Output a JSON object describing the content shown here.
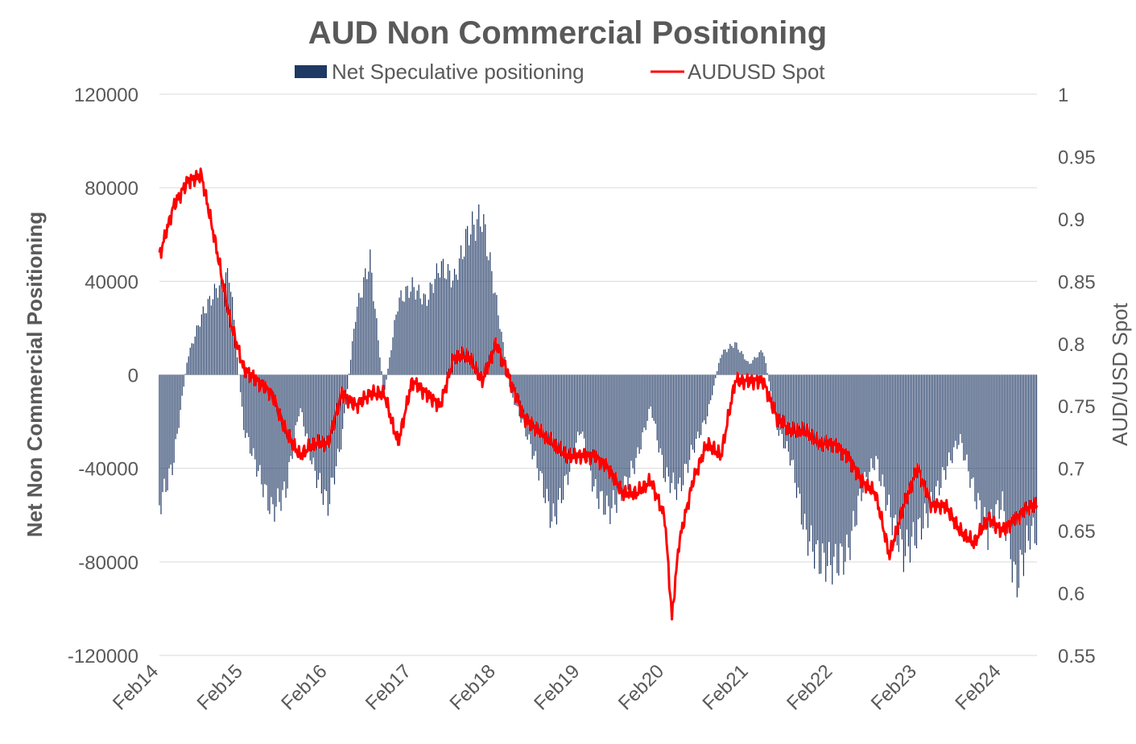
{
  "chart_data": {
    "type": "bar+line",
    "title": "AUD Non Commercial Positioning",
    "ylabel": "Net Non Commercial Positioning",
    "y2label": "AUD/USD Spot",
    "legend": {
      "position": "top",
      "entries": [
        "Net Speculative positioning",
        "AUDUSD Spot"
      ]
    },
    "grid": true,
    "ylim": [
      -120000,
      120000
    ],
    "y2lim": [
      0.55,
      1.0
    ],
    "y_ticks": [
      "120000",
      "80000",
      "40000",
      "0",
      "-40000",
      "-80000",
      "-120000"
    ],
    "y2_ticks": [
      "1",
      "0.95",
      "0.9",
      "0.85",
      "0.8",
      "0.75",
      "0.7",
      "0.65",
      "0.6",
      "0.55"
    ],
    "x_ticks": [
      "Feb14",
      "Feb15",
      "Feb16",
      "Feb17",
      "Feb18",
      "Feb19",
      "Feb20",
      "Feb21",
      "Feb22",
      "Feb23",
      "Feb24"
    ],
    "x_range": [
      "2014-02",
      "2024-07"
    ],
    "series": [
      {
        "name": "Net Speculative positioning",
        "type": "bar",
        "axis": "left",
        "color": "#1f3864",
        "x": [
          "2014-02",
          "2014-04",
          "2014-06",
          "2014-08",
          "2014-10",
          "2014-12",
          "2015-02",
          "2015-04",
          "2015-06",
          "2015-08",
          "2015-10",
          "2015-12",
          "2016-02",
          "2016-04",
          "2016-06",
          "2016-08",
          "2016-10",
          "2016-12",
          "2017-02",
          "2017-04",
          "2017-06",
          "2017-08",
          "2017-10",
          "2017-12",
          "2018-02",
          "2018-04",
          "2018-06",
          "2018-08",
          "2018-10",
          "2018-12",
          "2019-02",
          "2019-04",
          "2019-06",
          "2019-08",
          "2019-10",
          "2019-12",
          "2020-02",
          "2020-04",
          "2020-06",
          "2020-08",
          "2020-10",
          "2020-12",
          "2021-02",
          "2021-04",
          "2021-06",
          "2021-08",
          "2021-10",
          "2021-12",
          "2022-02",
          "2022-04",
          "2022-06",
          "2022-08",
          "2022-10",
          "2022-12",
          "2023-02",
          "2023-04",
          "2023-06",
          "2023-08",
          "2023-10",
          "2023-12",
          "2024-02",
          "2024-04",
          "2024-06"
        ],
        "values": [
          -62000,
          -42000,
          8000,
          28000,
          40000,
          48000,
          -25000,
          -45000,
          -65000,
          -55000,
          -15000,
          -45000,
          -62000,
          -30000,
          30000,
          55000,
          -10000,
          35000,
          42000,
          35000,
          52000,
          45000,
          68000,
          75000,
          35000,
          -8000,
          -25000,
          -45000,
          -70000,
          -50000,
          -25000,
          -55000,
          -65000,
          -55000,
          -40000,
          -15000,
          -48000,
          -55000,
          -35000,
          -20000,
          10000,
          15000,
          5000,
          12000,
          -25000,
          -40000,
          -75000,
          -88000,
          -90000,
          -85000,
          -55000,
          -40000,
          -65000,
          -85000,
          -75000,
          -62000,
          -45000,
          -30000,
          -55000,
          -75000,
          -60000,
          -100000,
          -75000
        ]
      },
      {
        "name": "AUDUSD Spot",
        "type": "line",
        "axis": "right",
        "color": "#ff0000",
        "x": [
          "2014-02",
          "2014-04",
          "2014-06",
          "2014-08",
          "2014-10",
          "2014-12",
          "2015-02",
          "2015-04",
          "2015-06",
          "2015-08",
          "2015-10",
          "2015-12",
          "2016-02",
          "2016-04",
          "2016-06",
          "2016-08",
          "2016-10",
          "2016-12",
          "2017-02",
          "2017-04",
          "2017-06",
          "2017-08",
          "2017-10",
          "2017-12",
          "2018-02",
          "2018-04",
          "2018-06",
          "2018-08",
          "2018-10",
          "2018-12",
          "2019-02",
          "2019-04",
          "2019-06",
          "2019-08",
          "2019-10",
          "2019-12",
          "2020-02",
          "2020-03",
          "2020-04",
          "2020-06",
          "2020-08",
          "2020-10",
          "2020-12",
          "2021-02",
          "2021-04",
          "2021-06",
          "2021-08",
          "2021-10",
          "2021-12",
          "2022-02",
          "2022-04",
          "2022-06",
          "2022-08",
          "2022-10",
          "2022-12",
          "2023-02",
          "2023-04",
          "2023-06",
          "2023-08",
          "2023-10",
          "2023-12",
          "2024-02",
          "2024-04",
          "2024-06",
          "2024-07"
        ],
        "values": [
          0.87,
          0.91,
          0.93,
          0.935,
          0.88,
          0.82,
          0.78,
          0.77,
          0.76,
          0.73,
          0.71,
          0.72,
          0.72,
          0.76,
          0.75,
          0.76,
          0.76,
          0.72,
          0.77,
          0.76,
          0.75,
          0.79,
          0.79,
          0.77,
          0.8,
          0.77,
          0.74,
          0.73,
          0.72,
          0.71,
          0.71,
          0.71,
          0.7,
          0.68,
          0.68,
          0.69,
          0.66,
          0.58,
          0.64,
          0.69,
          0.72,
          0.71,
          0.77,
          0.77,
          0.77,
          0.74,
          0.73,
          0.73,
          0.72,
          0.72,
          0.71,
          0.69,
          0.68,
          0.63,
          0.67,
          0.7,
          0.67,
          0.67,
          0.65,
          0.64,
          0.66,
          0.65,
          0.66,
          0.67,
          0.67
        ]
      }
    ]
  }
}
